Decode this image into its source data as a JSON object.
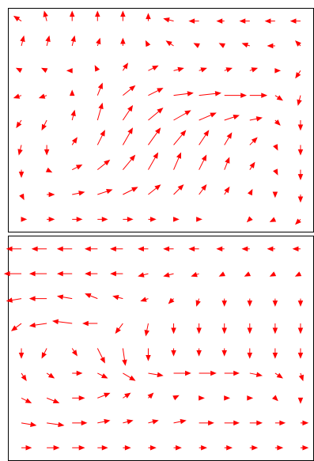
{
  "chart_data": [
    {
      "type": "quiver",
      "color": "#ff0000",
      "u": [
        [
          -0.3,
          -0.1,
          0,
          0,
          0,
          0,
          -0.4,
          -0.4,
          -0.3,
          -0.4,
          -0.4,
          -0.4
        ],
        [
          0.1,
          0.1,
          0.1,
          0.1,
          0,
          -0.1,
          -0.3,
          -0.2,
          -0.2,
          -0.3,
          -0.3,
          -0.2
        ],
        [
          -0.2,
          -0.2,
          -0.2,
          -0.1,
          0.2,
          0.4,
          0.4,
          0.3,
          0.3,
          0.3,
          0.2,
          -0.2
        ],
        [
          -0.3,
          -0.3,
          0,
          0.2,
          0.5,
          0.6,
          0.8,
          0.9,
          0.9,
          0.7,
          0.3,
          -0.1
        ],
        [
          -0.2,
          -0.2,
          0.1,
          0.2,
          0.4,
          0.6,
          0.7,
          0.7,
          0.6,
          0.5,
          0.2,
          0
        ],
        [
          -0.1,
          0,
          0.2,
          0.3,
          0.4,
          0.5,
          0.5,
          0.4,
          0.3,
          0.3,
          0.1,
          0
        ],
        [
          0,
          0.2,
          0.4,
          0.5,
          0.5,
          0.4,
          0.3,
          0.3,
          0.2,
          0.2,
          0.1,
          0
        ],
        [
          0.1,
          0.3,
          0.5,
          0.6,
          0.6,
          0.5,
          0.4,
          0.3,
          0.2,
          0.1,
          0,
          0
        ],
        [
          0.2,
          0.3,
          0.4,
          0.4,
          0.4,
          0.3,
          0.2,
          0.1,
          0,
          -0.1,
          -0.2,
          -0.2
        ]
      ],
      "v": [
        [
          0.2,
          0.4,
          0.4,
          0.4,
          0.4,
          0.3,
          0.1,
          0,
          0,
          0,
          0,
          0
        ],
        [
          0.4,
          0.4,
          0.4,
          0.3,
          0.3,
          0.2,
          0.2,
          0.1,
          0.1,
          0.1,
          0,
          0.2
        ],
        [
          0.1,
          0.1,
          0,
          0.2,
          0.3,
          0.2,
          0.1,
          0.1,
          0.1,
          0.1,
          0,
          -0.3
        ],
        [
          -0.1,
          -0.1,
          0.2,
          0.5,
          0.4,
          0.3,
          0.1,
          0.1,
          0,
          0,
          -0.2,
          -0.4
        ],
        [
          -0.3,
          -0.4,
          0.4,
          0.7,
          0.6,
          0.5,
          0.4,
          0.3,
          0.2,
          0.1,
          -0.2,
          -0.4
        ],
        [
          -0.4,
          -0.4,
          0.3,
          0.6,
          0.7,
          0.7,
          0.6,
          0.6,
          0.5,
          0.3,
          -0.2,
          -0.4
        ],
        [
          -0.3,
          -0.1,
          0.2,
          0.4,
          0.6,
          0.7,
          0.7,
          0.6,
          0.5,
          0.3,
          -0.2,
          -0.4
        ],
        [
          -0.2,
          0,
          0.1,
          0.2,
          0.3,
          0.4,
          0.4,
          0.4,
          0.3,
          0.2,
          -0.1,
          -0.3
        ],
        [
          0,
          0,
          0,
          0,
          0,
          0,
          0,
          0,
          0,
          -0.1,
          -0.1,
          -0.2
        ]
      ]
    },
    {
      "type": "quiver",
      "color": "#ff0000",
      "u": [
        [
          -0.6,
          -0.6,
          -0.6,
          -0.5,
          -0.5,
          -0.4,
          -0.4,
          -0.4,
          -0.3,
          -0.3,
          -0.3,
          -0.3
        ],
        [
          -0.7,
          -0.7,
          -0.6,
          -0.5,
          -0.5,
          -0.4,
          -0.4,
          -0.3,
          -0.2,
          -0.2,
          -0.2,
          -0.2
        ],
        [
          -0.6,
          -0.7,
          -0.6,
          -0.5,
          -0.4,
          -0.3,
          -0.2,
          -0.1,
          0,
          0,
          0,
          0
        ],
        [
          -0.4,
          -0.7,
          -0.8,
          -0.6,
          -0.3,
          -0.1,
          0,
          0,
          0,
          0,
          0,
          0
        ],
        [
          0,
          -0.2,
          0.2,
          0.3,
          0.1,
          0,
          0,
          0,
          0,
          0,
          0,
          0
        ],
        [
          0.2,
          0.3,
          0.4,
          0.4,
          0.5,
          0.6,
          0.7,
          0.7,
          0.6,
          0.5,
          0.3,
          0.1
        ],
        [
          0.4,
          0.5,
          0.5,
          0.5,
          0.3,
          0.2,
          0.2,
          0.2,
          0.2,
          0.1,
          0.1,
          0
        ],
        [
          0.6,
          0.7,
          0.6,
          0.5,
          0.4,
          0.4,
          0.5,
          0.6,
          0.6,
          0.5,
          0.4,
          0.3
        ],
        [
          0.4,
          0.5,
          0.5,
          0.4,
          0.3,
          0.3,
          0.3,
          0.3,
          0.3,
          0.3,
          0.3,
          0.3
        ]
      ],
      "v": [
        [
          0,
          0,
          0,
          0,
          0,
          0,
          0,
          0,
          0,
          0,
          0,
          0
        ],
        [
          0,
          0,
          0,
          0,
          0,
          -0.1,
          -0.1,
          -0.1,
          -0.1,
          -0.1,
          -0.1,
          -0.1
        ],
        [
          -0.1,
          0,
          0.1,
          0.2,
          0.1,
          -0.1,
          -0.2,
          -0.3,
          -0.3,
          -0.3,
          -0.3,
          -0.3
        ],
        [
          -0.3,
          -0.1,
          0.1,
          0,
          -0.4,
          -0.5,
          -0.4,
          -0.4,
          -0.4,
          -0.4,
          -0.4,
          -0.4
        ],
        [
          -0.4,
          -0.4,
          -0.3,
          -0.6,
          -0.7,
          -0.5,
          -0.3,
          -0.3,
          -0.3,
          -0.4,
          -0.4,
          -0.4
        ],
        [
          -0.3,
          -0.2,
          0,
          -0.2,
          -0.3,
          -0.1,
          0,
          0,
          0,
          -0.1,
          -0.2,
          -0.3
        ],
        [
          -0.2,
          -0.2,
          0,
          0.2,
          0.2,
          0.2,
          0.1,
          0,
          0,
          0,
          -0.1,
          -0.2
        ],
        [
          -0.1,
          -0.1,
          0,
          0.1,
          0.1,
          0.1,
          0.1,
          0,
          0,
          0,
          0,
          0
        ],
        [
          0,
          0,
          0,
          0,
          0,
          0,
          0,
          0,
          0,
          0,
          0,
          0
        ]
      ]
    }
  ]
}
